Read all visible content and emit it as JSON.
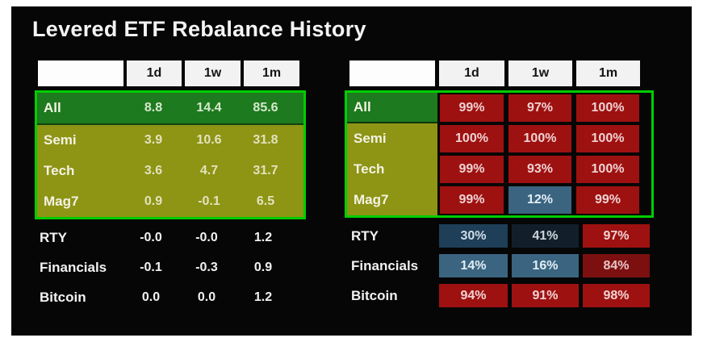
{
  "title": "Levered ETF Rebalance History",
  "columns": [
    "1d",
    "1w",
    "1m"
  ],
  "colors": {
    "highlight_border": "#00cd00",
    "group_all_bg": "#1e7a1e",
    "group_levered_bg": "#8e9414",
    "panel_bg": "#060606",
    "cell_styles": {
      "red": {
        "bg": "#9e1111",
        "text": "#f0d2d2"
      },
      "dark_red": {
        "bg": "#7c1010",
        "text": "#e8c4c4"
      },
      "steel_blue": {
        "bg": "#3a6480",
        "text": "#e3edf4"
      },
      "mid_blue": {
        "bg": "#1f3e57",
        "text": "#cfdde9"
      },
      "dark_navy": {
        "bg": "#121f2b",
        "text": "#ccd5dd"
      }
    }
  },
  "left_table": {
    "rows": [
      {
        "label": "All",
        "group": "all",
        "values": [
          "8.8",
          "14.4",
          "85.6"
        ]
      },
      {
        "label": "Semi",
        "group": "levered",
        "values": [
          "3.9",
          "10.6",
          "31.8"
        ]
      },
      {
        "label": "Tech",
        "group": "levered",
        "values": [
          "3.6",
          "4.7",
          "31.7"
        ]
      },
      {
        "label": "Mag7",
        "group": "levered",
        "values": [
          "0.9",
          "-0.1",
          "6.5"
        ]
      },
      {
        "label": "RTY",
        "group": "other",
        "values": [
          "-0.0",
          "-0.0",
          "1.2"
        ]
      },
      {
        "label": "Financials",
        "group": "other",
        "values": [
          "-0.1",
          "-0.3",
          "0.9"
        ]
      },
      {
        "label": "Bitcoin",
        "group": "other",
        "values": [
          "0.0",
          "0.0",
          "1.2"
        ]
      }
    ]
  },
  "right_table": {
    "rows": [
      {
        "label": "All",
        "group": "all",
        "values": [
          "99%",
          "97%",
          "100%"
        ],
        "cell_colors": [
          "red",
          "red",
          "red"
        ]
      },
      {
        "label": "Semi",
        "group": "levered",
        "values": [
          "100%",
          "100%",
          "100%"
        ],
        "cell_colors": [
          "red",
          "red",
          "red"
        ]
      },
      {
        "label": "Tech",
        "group": "levered",
        "values": [
          "99%",
          "93%",
          "100%"
        ],
        "cell_colors": [
          "red",
          "red",
          "red"
        ]
      },
      {
        "label": "Mag7",
        "group": "levered",
        "values": [
          "99%",
          "12%",
          "99%"
        ],
        "cell_colors": [
          "red",
          "steel_blue",
          "red"
        ]
      },
      {
        "label": "RTY",
        "group": "other",
        "values": [
          "30%",
          "41%",
          "97%"
        ],
        "cell_colors": [
          "mid_blue",
          "dark_navy",
          "red"
        ]
      },
      {
        "label": "Financials",
        "group": "other",
        "values": [
          "14%",
          "16%",
          "84%"
        ],
        "cell_colors": [
          "steel_blue",
          "steel_blue",
          "dark_red"
        ]
      },
      {
        "label": "Bitcoin",
        "group": "other",
        "values": [
          "94%",
          "91%",
          "98%"
        ],
        "cell_colors": [
          "red",
          "red",
          "red"
        ]
      }
    ]
  },
  "chart_data": [
    {
      "type": "table",
      "title": "Levered ETF returns",
      "columns": [
        "",
        "1d",
        "1w",
        "1m"
      ],
      "rows": [
        [
          "All",
          8.8,
          14.4,
          85.6
        ],
        [
          "Semi",
          3.9,
          10.6,
          31.8
        ],
        [
          "Tech",
          3.6,
          4.7,
          31.7
        ],
        [
          "Mag7",
          0.9,
          -0.1,
          6.5
        ],
        [
          "RTY",
          -0.0,
          -0.0,
          1.2
        ],
        [
          "Financials",
          -0.1,
          -0.3,
          0.9
        ],
        [
          "Bitcoin",
          0.0,
          0.0,
          1.2
        ]
      ]
    },
    {
      "type": "table",
      "title": "Levered ETF rebalance percentile",
      "columns": [
        "",
        "1d",
        "1w",
        "1m"
      ],
      "rows": [
        [
          "All",
          "99%",
          "97%",
          "100%"
        ],
        [
          "Semi",
          "100%",
          "100%",
          "100%"
        ],
        [
          "Tech",
          "99%",
          "93%",
          "100%"
        ],
        [
          "Mag7",
          "99%",
          "12%",
          "99%"
        ],
        [
          "RTY",
          "30%",
          "41%",
          "97%"
        ],
        [
          "Financials",
          "14%",
          "16%",
          "84%"
        ],
        [
          "Bitcoin",
          "94%",
          "91%",
          "98%"
        ]
      ]
    }
  ]
}
